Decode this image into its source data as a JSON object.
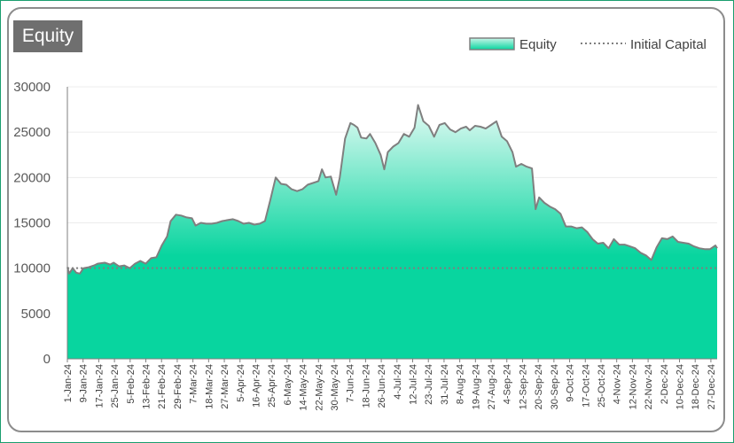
{
  "chart_data": {
    "type": "area",
    "title": "Equity",
    "xlabel": "",
    "ylabel": "",
    "ylim": [
      0,
      30000
    ],
    "yticks": [
      0,
      5000,
      10000,
      15000,
      20000,
      25000,
      30000
    ],
    "x_start": "2024-01-01",
    "x_end": "2024-12-31",
    "x_tick_labels": [
      "1-Jan-24",
      "9-Jan-24",
      "17-Jan-24",
      "25-Jan-24",
      "5-Feb-24",
      "13-Feb-24",
      "21-Feb-24",
      "29-Feb-24",
      "7-Mar-24",
      "18-Mar-24",
      "27-Mar-24",
      "5-Apr-24",
      "16-Apr-24",
      "25-Apr-24",
      "6-May-24",
      "14-May-24",
      "22-May-24",
      "30-May-24",
      "7-Jun-24",
      "18-Jun-24",
      "26-Jun-24",
      "4-Jul-24",
      "12-Jul-24",
      "23-Jul-24",
      "31-Jul-24",
      "8-Aug-24",
      "19-Aug-24",
      "27-Aug-24",
      "4-Sep-24",
      "12-Sep-24",
      "20-Sep-24",
      "30-Sep-24",
      "9-Oct-24",
      "17-Oct-24",
      "25-Oct-24",
      "4-Nov-24",
      "12-Nov-24",
      "22-Nov-24",
      "2-Dec-24",
      "10-Dec-24",
      "18-Dec-24",
      "27-Dec-24"
    ],
    "grid": true,
    "legend_position": "top-right",
    "series": [
      {
        "name": "Equity",
        "type": "area",
        "color": "#08d59f",
        "points": [
          [
            "2024-01-01",
            10100
          ],
          [
            "2024-01-02",
            9400
          ],
          [
            "2024-01-04",
            10000
          ],
          [
            "2024-01-06",
            9500
          ],
          [
            "2024-01-08",
            9400
          ],
          [
            "2024-01-10",
            10000
          ],
          [
            "2024-01-13",
            10100
          ],
          [
            "2024-01-16",
            10300
          ],
          [
            "2024-01-18",
            10500
          ],
          [
            "2024-01-22",
            10600
          ],
          [
            "2024-01-25",
            10400
          ],
          [
            "2024-01-27",
            10600
          ],
          [
            "2024-01-30",
            10200
          ],
          [
            "2024-02-02",
            10300
          ],
          [
            "2024-02-05",
            10000
          ],
          [
            "2024-02-08",
            10500
          ],
          [
            "2024-02-11",
            10800
          ],
          [
            "2024-02-14",
            10500
          ],
          [
            "2024-02-17",
            11100
          ],
          [
            "2024-02-20",
            11200
          ],
          [
            "2024-02-23",
            12500
          ],
          [
            "2024-02-26",
            13500
          ],
          [
            "2024-02-28",
            15200
          ],
          [
            "2024-03-02",
            15900
          ],
          [
            "2024-03-05",
            15800
          ],
          [
            "2024-03-08",
            15600
          ],
          [
            "2024-03-11",
            15500
          ],
          [
            "2024-03-13",
            14700
          ],
          [
            "2024-03-16",
            15000
          ],
          [
            "2024-03-19",
            14900
          ],
          [
            "2024-03-22",
            14900
          ],
          [
            "2024-03-25",
            15000
          ],
          [
            "2024-03-28",
            15200
          ],
          [
            "2024-03-31",
            15300
          ],
          [
            "2024-04-03",
            15400
          ],
          [
            "2024-04-06",
            15200
          ],
          [
            "2024-04-09",
            14900
          ],
          [
            "2024-04-12",
            15000
          ],
          [
            "2024-04-15",
            14800
          ],
          [
            "2024-04-18",
            14900
          ],
          [
            "2024-04-21",
            15200
          ],
          [
            "2024-04-24",
            17500
          ],
          [
            "2024-04-27",
            20000
          ],
          [
            "2024-04-30",
            19300
          ],
          [
            "2024-05-03",
            19200
          ],
          [
            "2024-05-06",
            18700
          ],
          [
            "2024-05-09",
            18500
          ],
          [
            "2024-05-12",
            18700
          ],
          [
            "2024-05-15",
            19200
          ],
          [
            "2024-05-18",
            19400
          ],
          [
            "2024-05-21",
            19600
          ],
          [
            "2024-05-23",
            20900
          ],
          [
            "2024-05-25",
            20000
          ],
          [
            "2024-05-28",
            20100
          ],
          [
            "2024-05-31",
            18100
          ],
          [
            "2024-06-02",
            20000
          ],
          [
            "2024-06-05",
            24300
          ],
          [
            "2024-06-08",
            26000
          ],
          [
            "2024-06-10",
            25800
          ],
          [
            "2024-06-12",
            25500
          ],
          [
            "2024-06-14",
            24400
          ],
          [
            "2024-06-17",
            24300
          ],
          [
            "2024-06-19",
            24800
          ],
          [
            "2024-06-22",
            23800
          ],
          [
            "2024-06-25",
            22500
          ],
          [
            "2024-06-27",
            20900
          ],
          [
            "2024-06-29",
            22800
          ],
          [
            "2024-07-02",
            23400
          ],
          [
            "2024-07-05",
            23800
          ],
          [
            "2024-07-08",
            24800
          ],
          [
            "2024-07-11",
            24500
          ],
          [
            "2024-07-14",
            25500
          ],
          [
            "2024-07-16",
            28000
          ],
          [
            "2024-07-19",
            26200
          ],
          [
            "2024-07-22",
            25700
          ],
          [
            "2024-07-25",
            24500
          ],
          [
            "2024-07-28",
            25800
          ],
          [
            "2024-07-31",
            26000
          ],
          [
            "2024-08-03",
            25300
          ],
          [
            "2024-08-06",
            25000
          ],
          [
            "2024-08-09",
            25400
          ],
          [
            "2024-08-12",
            25600
          ],
          [
            "2024-08-14",
            25200
          ],
          [
            "2024-08-17",
            25700
          ],
          [
            "2024-08-20",
            25600
          ],
          [
            "2024-08-23",
            25400
          ],
          [
            "2024-08-26",
            25800
          ],
          [
            "2024-08-29",
            26200
          ],
          [
            "2024-09-01",
            24500
          ],
          [
            "2024-09-04",
            24000
          ],
          [
            "2024-09-07",
            22800
          ],
          [
            "2024-09-09",
            21200
          ],
          [
            "2024-09-12",
            21500
          ],
          [
            "2024-09-15",
            21200
          ],
          [
            "2024-09-18",
            21000
          ],
          [
            "2024-09-20",
            16500
          ],
          [
            "2024-09-22",
            17800
          ],
          [
            "2024-09-25",
            17200
          ],
          [
            "2024-09-28",
            16800
          ],
          [
            "2024-10-01",
            16500
          ],
          [
            "2024-10-04",
            16000
          ],
          [
            "2024-10-07",
            14600
          ],
          [
            "2024-10-10",
            14600
          ],
          [
            "2024-10-13",
            14400
          ],
          [
            "2024-10-16",
            14500
          ],
          [
            "2024-10-19",
            14000
          ],
          [
            "2024-10-22",
            13200
          ],
          [
            "2024-10-25",
            12700
          ],
          [
            "2024-10-28",
            12800
          ],
          [
            "2024-10-31",
            12200
          ],
          [
            "2024-11-03",
            13200
          ],
          [
            "2024-11-06",
            12600
          ],
          [
            "2024-11-09",
            12600
          ],
          [
            "2024-11-12",
            12400
          ],
          [
            "2024-11-15",
            12200
          ],
          [
            "2024-11-18",
            11700
          ],
          [
            "2024-11-21",
            11400
          ],
          [
            "2024-11-24",
            10900
          ],
          [
            "2024-11-27",
            12300
          ],
          [
            "2024-11-30",
            13300
          ],
          [
            "2024-12-03",
            13200
          ],
          [
            "2024-12-06",
            13500
          ],
          [
            "2024-12-09",
            12900
          ],
          [
            "2024-12-12",
            12800
          ],
          [
            "2024-12-15",
            12700
          ],
          [
            "2024-12-18",
            12400
          ],
          [
            "2024-12-21",
            12200
          ],
          [
            "2024-12-24",
            12100
          ],
          [
            "2024-12-27",
            12100
          ],
          [
            "2024-12-30",
            12500
          ],
          [
            "2024-12-31",
            12200
          ]
        ]
      },
      {
        "name": "Initial Capital",
        "type": "line",
        "style": "dotted",
        "color": "#7f7f7f",
        "value": 10000
      }
    ]
  }
}
